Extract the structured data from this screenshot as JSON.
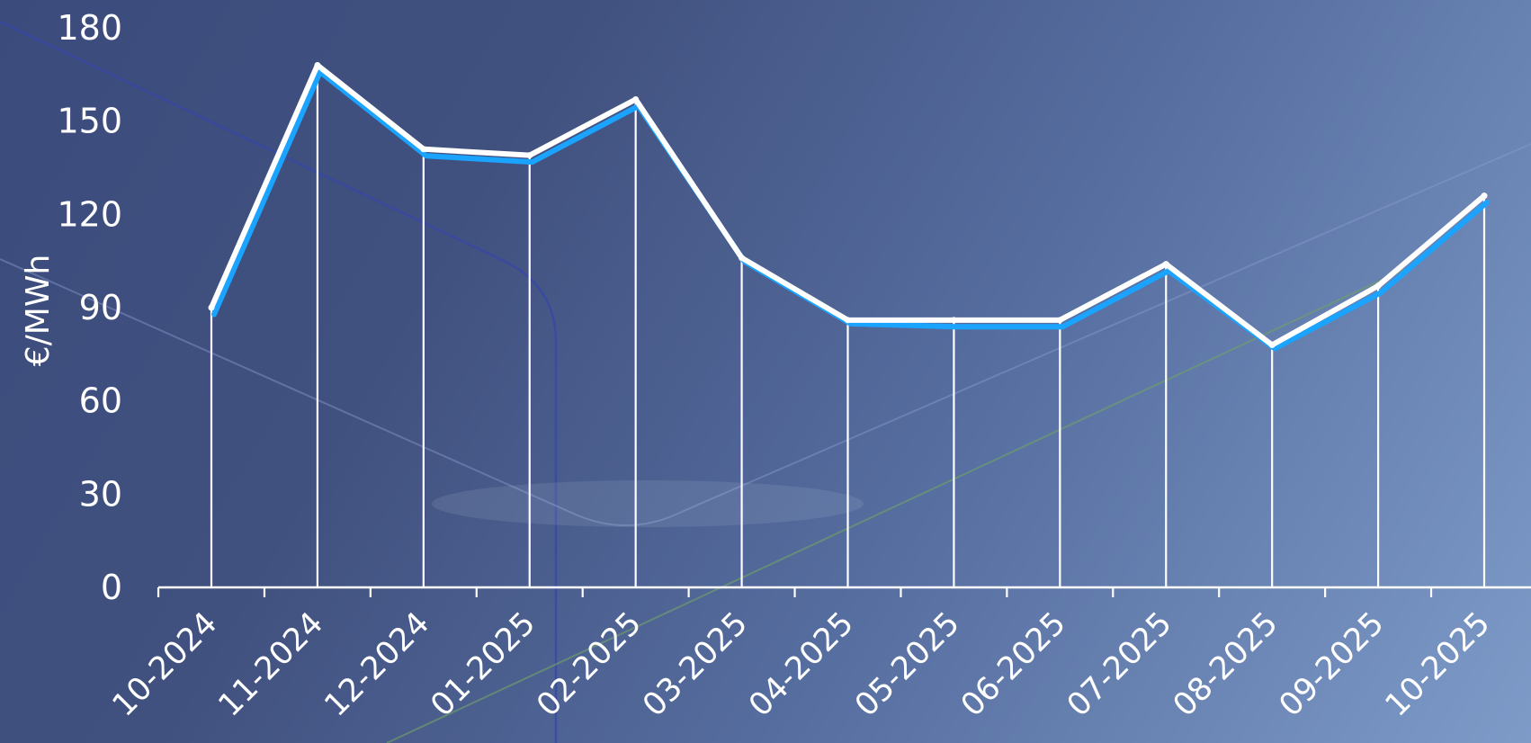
{
  "chart_data": {
    "type": "line",
    "title": "",
    "xlabel": "",
    "ylabel": "€/MWh",
    "categories": [
      "10-2024",
      "11-2024",
      "12-2024",
      "01-2025",
      "02-2025",
      "03-2025",
      "04-2025",
      "05-2025",
      "06-2025",
      "07-2025",
      "08-2025",
      "09-2025",
      "10-2025"
    ],
    "series": [
      {
        "values": [
          89,
          167,
          140,
          138,
          156,
          106,
          86,
          85,
          85,
          103,
          78,
          96,
          125
        ]
      },
      {
        "values": [
          90,
          168,
          141,
          139,
          157,
          106,
          86,
          86,
          86,
          104,
          78,
          97,
          126
        ]
      }
    ],
    "ylim": [
      0,
      180
    ],
    "yticks": [
      0,
      30,
      60,
      90,
      120,
      150,
      180
    ],
    "grid": false,
    "drop_lines": true,
    "legend": "none",
    "colors": {
      "primary_line": "#ffffff",
      "shadow_line": "#1aa3ff",
      "axis": "#ffffff",
      "text": "#ffffff",
      "background_start": "#3b4b7c",
      "background_end": "#7e9bc8"
    }
  }
}
